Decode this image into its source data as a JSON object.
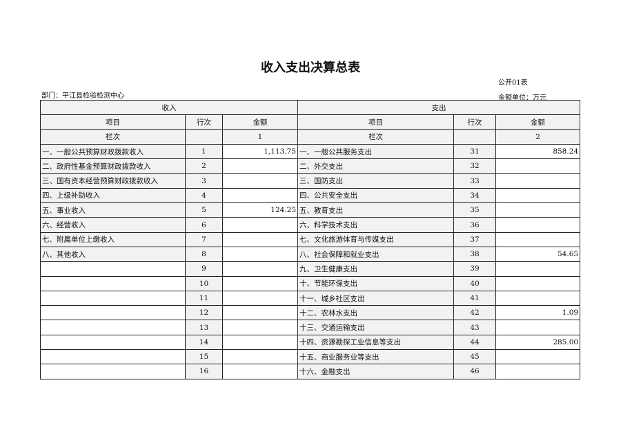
{
  "title": "收入支出决算总表",
  "form_code": "公开01表",
  "department": "部门：平江县检验检测中心",
  "unit": "金额单位：万元",
  "headers": {
    "income": "收入",
    "expense": "支出",
    "item": "项目",
    "row_no": "行次",
    "amount": "金额",
    "column_index": "栏次",
    "income_col": "1",
    "expense_col": "2"
  },
  "rows": [
    {
      "in_item": "一、一般公共预算财政拨款收入",
      "in_no": "1",
      "in_amt": "1,113.75",
      "ex_item": "一、一般公共服务支出",
      "ex_no": "31",
      "ex_amt": "858.24"
    },
    {
      "in_item": "二、政府性基金预算财政拨款收入",
      "in_no": "2",
      "in_amt": "",
      "ex_item": "二、外交支出",
      "ex_no": "32",
      "ex_amt": ""
    },
    {
      "in_item": "三、国有资本经营预算财政拨款收入",
      "in_no": "3",
      "in_amt": "",
      "ex_item": "三、国防支出",
      "ex_no": "33",
      "ex_amt": ""
    },
    {
      "in_item": "四、上级补助收入",
      "in_no": "4",
      "in_amt": "",
      "ex_item": "四、公共安全支出",
      "ex_no": "34",
      "ex_amt": ""
    },
    {
      "in_item": "五、事业收入",
      "in_no": "5",
      "in_amt": "124.25",
      "ex_item": "五、教育支出",
      "ex_no": "35",
      "ex_amt": ""
    },
    {
      "in_item": "六、经营收入",
      "in_no": "6",
      "in_amt": "",
      "ex_item": "六、科学技术支出",
      "ex_no": "36",
      "ex_amt": ""
    },
    {
      "in_item": "七、附属单位上缴收入",
      "in_no": "7",
      "in_amt": "",
      "ex_item": "七、文化旅游体育与传媒支出",
      "ex_no": "37",
      "ex_amt": ""
    },
    {
      "in_item": "八、其他收入",
      "in_no": "8",
      "in_amt": "",
      "ex_item": "八、社会保障和就业支出",
      "ex_no": "38",
      "ex_amt": "54.65"
    },
    {
      "in_item": "",
      "in_no": "9",
      "in_amt": "",
      "ex_item": "九、卫生健康支出",
      "ex_no": "39",
      "ex_amt": ""
    },
    {
      "in_item": "",
      "in_no": "10",
      "in_amt": "",
      "ex_item": "十、节能环保支出",
      "ex_no": "40",
      "ex_amt": ""
    },
    {
      "in_item": "",
      "in_no": "11",
      "in_amt": "",
      "ex_item": "十一、城乡社区支出",
      "ex_no": "41",
      "ex_amt": ""
    },
    {
      "in_item": "",
      "in_no": "12",
      "in_amt": "",
      "ex_item": "十二、农林水支出",
      "ex_no": "42",
      "ex_amt": "1.09"
    },
    {
      "in_item": "",
      "in_no": "13",
      "in_amt": "",
      "ex_item": "十三、交通运输支出",
      "ex_no": "43",
      "ex_amt": ""
    },
    {
      "in_item": "",
      "in_no": "14",
      "in_amt": "",
      "ex_item": "十四、资源勘探工业信息等支出",
      "ex_no": "44",
      "ex_amt": "285.00"
    },
    {
      "in_item": "",
      "in_no": "15",
      "in_amt": "",
      "ex_item": "十五、商业服务业等支出",
      "ex_no": "45",
      "ex_amt": ""
    },
    {
      "in_item": "",
      "in_no": "16",
      "in_amt": "",
      "ex_item": "十六、金融支出",
      "ex_no": "46",
      "ex_amt": ""
    }
  ]
}
